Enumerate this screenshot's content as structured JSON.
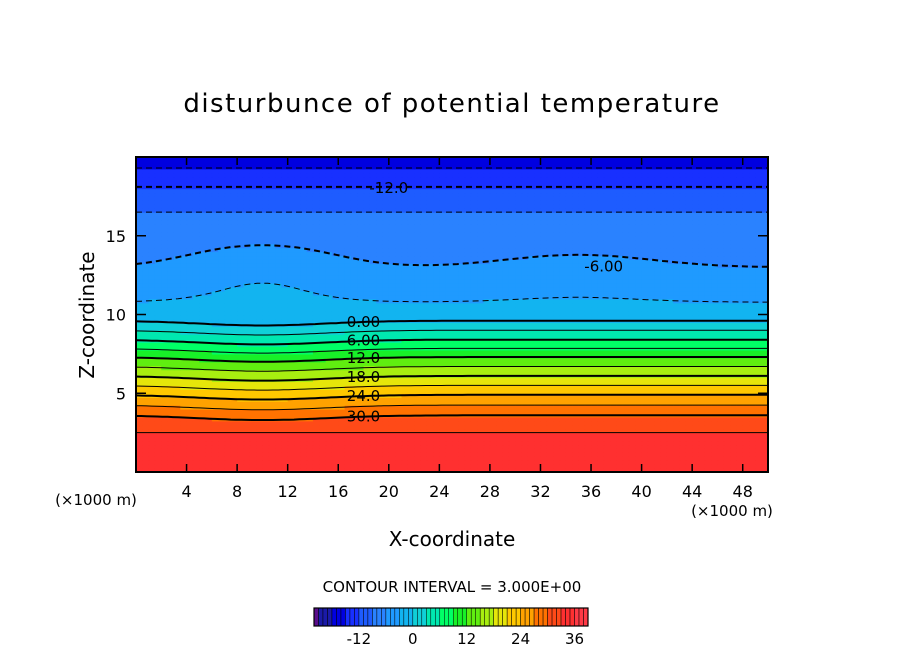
{
  "chart_data": {
    "type": "heatmap",
    "title": "disturbunce of potential temperature",
    "xlabel": "X-coordinate",
    "ylabel": "Z-coordinate",
    "x_unit": "(×1000 m)",
    "x_unit_right": "(×1000 m)",
    "xlim": [
      0,
      50
    ],
    "ylim": [
      0,
      20
    ],
    "x_ticks": [
      4,
      8,
      12,
      16,
      20,
      24,
      28,
      32,
      36,
      40,
      44,
      48
    ],
    "y_ticks": [
      5,
      10,
      15
    ],
    "contour_interval_label": "CONTOUR INTERVAL = 3.000E+00",
    "contour_interval": 3.0,
    "color_levels": [
      -21,
      -18,
      -15,
      -12,
      -9,
      -6,
      -3,
      0,
      3,
      6,
      9,
      12,
      15,
      18,
      21,
      24,
      27,
      30,
      33,
      36,
      39,
      42
    ],
    "colorbar": {
      "range": [
        -22,
        39
      ],
      "tick_labels": [
        "-12",
        "0",
        "12",
        "24",
        "36"
      ],
      "tick_values": [
        -12,
        0,
        12,
        24,
        36
      ]
    },
    "contour_labels": [
      {
        "text": "-12.0",
        "value": -12.0,
        "x": 20,
        "z": 18.1
      },
      {
        "text": "-6.00",
        "value": -6.0,
        "x": 37,
        "z": 13.1
      },
      {
        "text": "0.00",
        "value": 0.0,
        "x": 18,
        "z": 9.6
      },
      {
        "text": "6.00",
        "value": 6.0,
        "x": 18,
        "z": 8.4
      },
      {
        "text": "12.0",
        "value": 12.0,
        "x": 18,
        "z": 7.3
      },
      {
        "text": "18.0",
        "value": 18.0,
        "x": 18,
        "z": 6.1
      },
      {
        "text": "24.0",
        "value": 24.0,
        "x": 18,
        "z": 4.9
      },
      {
        "text": "30.0",
        "value": 30.0,
        "x": 18,
        "z": 3.6
      }
    ]
  },
  "colors": {
    "background": "#ffffff",
    "frame": "#000000",
    "scale": [
      "#5a0d8a",
      "#1a1aa8",
      "#0000e0",
      "#1830ff",
      "#1e5cff",
      "#2a82ff",
      "#1f9aff",
      "#12b4f0",
      "#10d0d8",
      "#00e8b0",
      "#00ff66",
      "#18f028",
      "#60ee10",
      "#a8ee10",
      "#e6e60a",
      "#ffc800",
      "#ffa200",
      "#ff7200",
      "#ff4a18",
      "#ff3030",
      "#ff3a46",
      "#f08a9a"
    ]
  }
}
